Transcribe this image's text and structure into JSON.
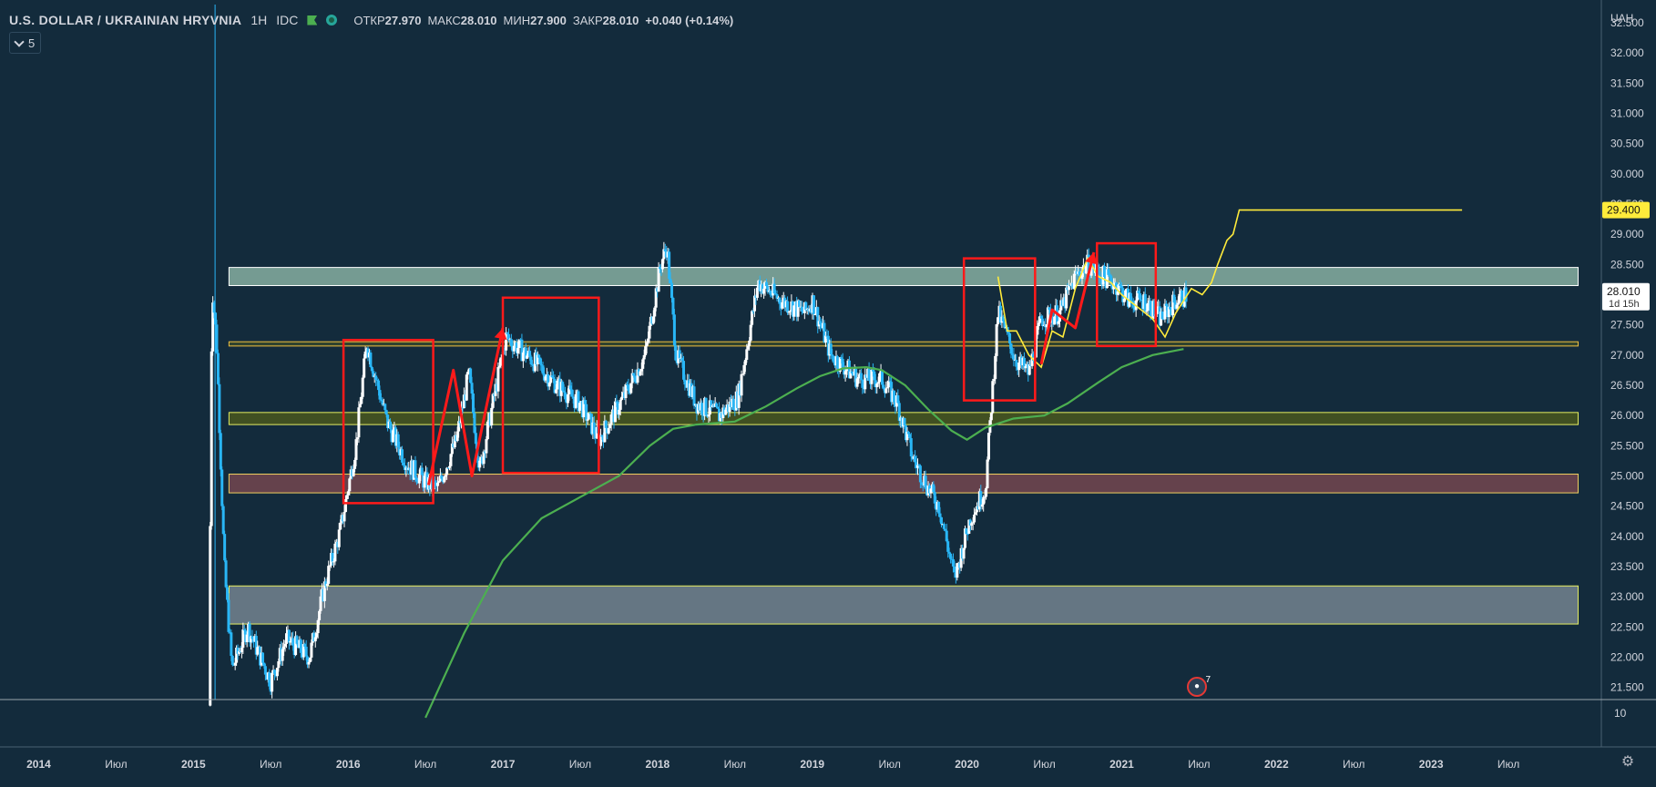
{
  "header": {
    "symbol": "U.S. DOLLAR / UKRAINIAN HRYVNIA",
    "interval": "1H",
    "source": "IDC",
    "open_label": "ОТКР",
    "open_value": "27.970",
    "high_label": "МАКС",
    "high_value": "28.010",
    "low_label": "МИН",
    "low_value": "27.900",
    "close_label": "ЗАКР",
    "close_value": "28.010",
    "change": "+0.040 (+0.14%)"
  },
  "indicator_row": {
    "value": "5"
  },
  "currency_label": "UAH",
  "events_badge": {
    "count": "7"
  },
  "colors": {
    "background": "#132b3c",
    "candle_up": "#ffffff",
    "candle_down": "#29b6f6",
    "moving_average": "#4caf50",
    "projection": "#ffeb3b",
    "annotation": "#ff1a1a",
    "axis_text": "#d1d4dc"
  },
  "chart_data": {
    "type": "candlestick",
    "price_axis": {
      "ticks": [
        "32.500",
        "32.000",
        "31.500",
        "31.000",
        "30.500",
        "30.000",
        "29.500",
        "29.000",
        "28.500",
        "28.000",
        "27.500",
        "27.000",
        "26.500",
        "26.000",
        "25.500",
        "25.000",
        "24.500",
        "24.000",
        "23.500",
        "23.000",
        "22.500",
        "22.000",
        "21.500"
      ],
      "ylim": [
        21.3,
        32.8
      ],
      "current_price": "28.010",
      "countdown": "1d 15h",
      "target_price": "29.400"
    },
    "time_axis": {
      "labels": [
        {
          "t": 2014.0,
          "label": "2014"
        },
        {
          "t": 2014.5,
          "label": "Июл"
        },
        {
          "t": 2015.0,
          "label": "2015"
        },
        {
          "t": 2015.5,
          "label": "Июл"
        },
        {
          "t": 2016.0,
          "label": "2016"
        },
        {
          "t": 2016.5,
          "label": "Июл"
        },
        {
          "t": 2017.0,
          "label": "2017"
        },
        {
          "t": 2017.5,
          "label": "Июл"
        },
        {
          "t": 2018.0,
          "label": "2018"
        },
        {
          "t": 2018.5,
          "label": "Июл"
        },
        {
          "t": 2019.0,
          "label": "2019"
        },
        {
          "t": 2019.5,
          "label": "Июл"
        },
        {
          "t": 2020.0,
          "label": "2020"
        },
        {
          "t": 2020.5,
          "label": "Июл"
        },
        {
          "t": 2021.0,
          "label": "2021"
        },
        {
          "t": 2021.5,
          "label": "Июл"
        },
        {
          "t": 2022.0,
          "label": "2022"
        },
        {
          "t": 2022.5,
          "label": "Июл"
        },
        {
          "t": 2023.0,
          "label": "2023"
        },
        {
          "t": 2023.5,
          "label": "Июл"
        }
      ],
      "xlim": [
        2013.75,
        2024.1
      ]
    },
    "price_path": [
      [
        2015.1,
        21.2
      ],
      [
        2015.12,
        28.2
      ],
      [
        2015.15,
        27.2
      ],
      [
        2015.2,
        23.5
      ],
      [
        2015.25,
        21.8
      ],
      [
        2015.35,
        22.5
      ],
      [
        2015.5,
        21.6
      ],
      [
        2015.6,
        22.3
      ],
      [
        2015.75,
        22.0
      ],
      [
        2015.85,
        23.2
      ],
      [
        2015.95,
        24.1
      ],
      [
        2016.05,
        25.5
      ],
      [
        2016.12,
        27.2
      ],
      [
        2016.25,
        25.9
      ],
      [
        2016.38,
        25.2
      ],
      [
        2016.5,
        24.9
      ],
      [
        2016.58,
        24.8
      ],
      [
        2016.7,
        25.6
      ],
      [
        2016.78,
        26.7
      ],
      [
        2016.85,
        25.1
      ],
      [
        2016.92,
        26.0
      ],
      [
        2017.02,
        27.3
      ],
      [
        2017.2,
        26.9
      ],
      [
        2017.35,
        26.5
      ],
      [
        2017.5,
        26.2
      ],
      [
        2017.62,
        25.6
      ],
      [
        2017.78,
        26.3
      ],
      [
        2017.92,
        27.0
      ],
      [
        2018.02,
        28.5
      ],
      [
        2018.06,
        28.8
      ],
      [
        2018.12,
        27.0
      ],
      [
        2018.25,
        26.2
      ],
      [
        2018.4,
        26.0
      ],
      [
        2018.52,
        26.3
      ],
      [
        2018.65,
        28.2
      ],
      [
        2018.8,
        27.9
      ],
      [
        2018.95,
        27.7
      ],
      [
        2019.0,
        27.9
      ],
      [
        2019.12,
        27.0
      ],
      [
        2019.3,
        26.6
      ],
      [
        2019.45,
        26.6
      ],
      [
        2019.55,
        26.2
      ],
      [
        2019.65,
        25.3
      ],
      [
        2019.75,
        24.8
      ],
      [
        2019.82,
        24.5
      ],
      [
        2019.92,
        23.3
      ],
      [
        2020.02,
        24.3
      ],
      [
        2020.12,
        24.8
      ],
      [
        2020.2,
        27.7
      ],
      [
        2020.32,
        26.9
      ],
      [
        2020.4,
        26.7
      ],
      [
        2020.48,
        27.6
      ],
      [
        2020.6,
        27.7
      ],
      [
        2020.7,
        28.3
      ],
      [
        2020.78,
        28.5
      ],
      [
        2020.88,
        28.3
      ],
      [
        2020.95,
        28.2
      ],
      [
        2021.05,
        27.9
      ],
      [
        2021.15,
        27.9
      ],
      [
        2021.25,
        27.6
      ],
      [
        2021.35,
        27.9
      ],
      [
        2021.42,
        28.0
      ]
    ],
    "moving_average": [
      [
        2016.5,
        21.0
      ],
      [
        2016.75,
        22.4
      ],
      [
        2017.0,
        23.6
      ],
      [
        2017.25,
        24.3
      ],
      [
        2017.5,
        24.65
      ],
      [
        2017.75,
        25.0
      ],
      [
        2017.95,
        25.5
      ],
      [
        2018.1,
        25.78
      ],
      [
        2018.25,
        25.85
      ],
      [
        2018.5,
        25.9
      ],
      [
        2018.7,
        26.15
      ],
      [
        2018.9,
        26.45
      ],
      [
        2019.05,
        26.65
      ],
      [
        2019.2,
        26.78
      ],
      [
        2019.35,
        26.8
      ],
      [
        2019.45,
        26.75
      ],
      [
        2019.6,
        26.5
      ],
      [
        2019.75,
        26.1
      ],
      [
        2019.9,
        25.75
      ],
      [
        2020.0,
        25.6
      ],
      [
        2020.12,
        25.8
      ],
      [
        2020.3,
        25.95
      ],
      [
        2020.5,
        26.0
      ],
      [
        2020.65,
        26.2
      ],
      [
        2020.85,
        26.55
      ],
      [
        2021.0,
        26.8
      ],
      [
        2021.2,
        27.0
      ],
      [
        2021.4,
        27.1
      ]
    ],
    "projection": [
      [
        2020.2,
        28.3
      ],
      [
        2020.26,
        27.4
      ],
      [
        2020.32,
        27.4
      ],
      [
        2020.4,
        27.0
      ],
      [
        2020.48,
        26.8
      ],
      [
        2020.55,
        27.4
      ],
      [
        2020.62,
        27.3
      ],
      [
        2020.7,
        28.1
      ],
      [
        2020.78,
        28.6
      ],
      [
        2020.85,
        28.3
      ],
      [
        2020.93,
        28.2
      ],
      [
        2021.0,
        28.0
      ],
      [
        2021.1,
        27.8
      ],
      [
        2021.2,
        27.6
      ],
      [
        2021.28,
        27.3
      ],
      [
        2021.35,
        27.7
      ],
      [
        2021.45,
        28.1
      ],
      [
        2021.52,
        28.0
      ],
      [
        2021.58,
        28.2
      ],
      [
        2021.62,
        28.5
      ],
      [
        2021.68,
        28.9
      ],
      [
        2021.72,
        29.0
      ],
      [
        2021.76,
        29.4
      ],
      [
        2021.82,
        29.4
      ],
      [
        2023.2,
        29.4
      ]
    ],
    "horizontal_zones": [
      {
        "from": 28.15,
        "to": 28.45,
        "fill": "#8fb8a8",
        "border": "#ffffff"
      },
      {
        "from": 27.15,
        "to": 27.22,
        "fill": "#3a4a2a",
        "border": "#f0c040"
      },
      {
        "from": 25.85,
        "to": 26.05,
        "fill": "#4d5a1c",
        "border": "#e6ee60"
      },
      {
        "from": 24.72,
        "to": 25.03,
        "fill": "#7a4850",
        "border": "#f0d060"
      },
      {
        "from": 22.55,
        "to": 23.18,
        "fill": "#7a8a95",
        "border": "#e6ee60"
      }
    ],
    "annotation_boxes": [
      {
        "t0": 2015.97,
        "t1": 2016.55,
        "p0": 24.55,
        "p1": 27.25
      },
      {
        "t0": 2017.0,
        "t1": 2017.62,
        "p0": 25.05,
        "p1": 27.95
      },
      {
        "t0": 2019.98,
        "t1": 2020.44,
        "p0": 26.25,
        "p1": 28.6
      },
      {
        "t0": 2020.84,
        "t1": 2021.22,
        "p0": 27.15,
        "p1": 28.85
      }
    ],
    "annotation_arrows": [
      [
        [
          2016.52,
          24.85
        ],
        [
          2016.68,
          26.75
        ],
        [
          2016.8,
          25.0
        ],
        [
          2017.0,
          27.45
        ]
      ],
      [
        [
          2020.48,
          26.85
        ],
        [
          2020.55,
          27.75
        ],
        [
          2020.7,
          27.45
        ],
        [
          2020.82,
          28.7
        ]
      ]
    ],
    "volume_scale_tick": "10"
  }
}
